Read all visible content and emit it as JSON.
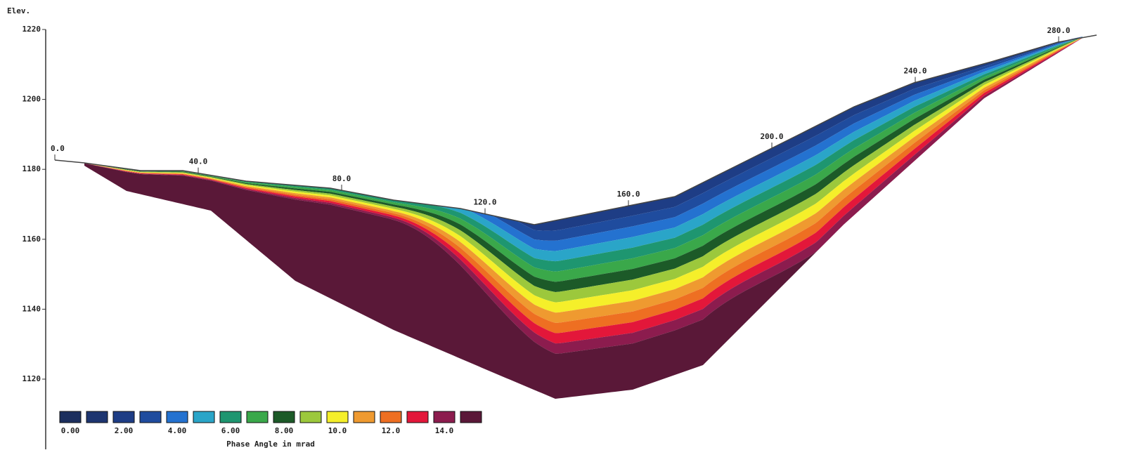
{
  "chart_data": {
    "type": "section",
    "y_label": "Elev.",
    "ylim": [
      1120,
      1220
    ],
    "yticks": [
      1120,
      1140,
      1160,
      1180,
      1200,
      1220
    ],
    "distance_ticks": [
      {
        "value": 0,
        "label": "0.0"
      },
      {
        "value": 40,
        "label": "40.0"
      },
      {
        "value": 80,
        "label": "80.0"
      },
      {
        "value": 120,
        "label": "120.0"
      },
      {
        "value": 160,
        "label": "160.0"
      },
      {
        "value": 200,
        "label": "200.0"
      },
      {
        "value": 240,
        "label": "240.0"
      },
      {
        "value": 280,
        "label": "280.0"
      }
    ],
    "legend": {
      "title": "Phase Angle in mrad",
      "colors": [
        "#1c2f5e",
        "#1d3570",
        "#1e3d85",
        "#1f4c9e",
        "#2472d0",
        "#2aa5c8",
        "#1e9670",
        "#3aa84a",
        "#1c5a28",
        "#9cc83c",
        "#f5ef2a",
        "#ef9a30",
        "#ee6f22",
        "#e3173a",
        "#8c1c4e",
        "#5a1838"
      ],
      "labels": [
        {
          "value": 0,
          "label": "0.00"
        },
        {
          "value": 2,
          "label": "2.00"
        },
        {
          "value": 4,
          "label": "4.00"
        },
        {
          "value": 6,
          "label": "6.00"
        },
        {
          "value": 8,
          "label": "8.00"
        },
        {
          "value": 10,
          "label": "10.0"
        },
        {
          "value": 12,
          "label": "12.0"
        },
        {
          "value": 14,
          "label": "14.0"
        }
      ]
    }
  }
}
